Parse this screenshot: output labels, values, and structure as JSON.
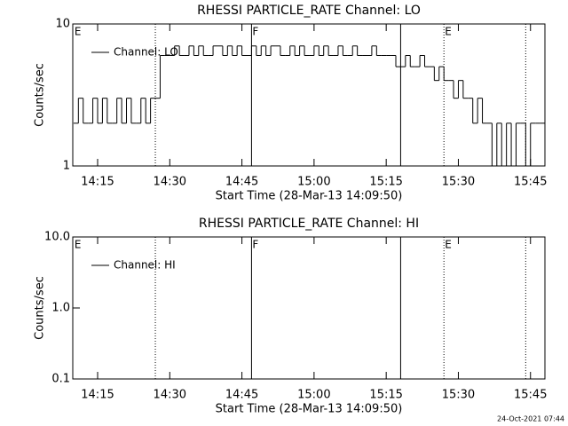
{
  "chart_data": [
    {
      "type": "line",
      "title": "RHESSI PARTICLE_RATE Channel: LO",
      "xlabel": "Start Time (28-Mar-13 14:09:50)",
      "ylabel": "Counts/sec",
      "ylog": true,
      "ylim": [
        1,
        10
      ],
      "yticks": [
        1,
        10
      ],
      "xlim": [
        "14:09:50",
        "15:48"
      ],
      "xticks": [
        "14:15",
        "14:30",
        "14:45",
        "15:00",
        "15:15",
        "15:30",
        "15:45"
      ],
      "vlines": [
        {
          "x": "14:27",
          "style": "dotted"
        },
        {
          "x": "14:47",
          "style": "solid"
        },
        {
          "x": "15:18",
          "style": "solid"
        },
        {
          "x": "15:27",
          "style": "dotted"
        },
        {
          "x": "15:44",
          "style": "dotted"
        }
      ],
      "flags": [
        {
          "label": "E",
          "x": "14:10"
        },
        {
          "label": "F",
          "x": "14:47"
        },
        {
          "label": "E",
          "x": "15:27"
        }
      ],
      "series": [
        {
          "name": "Channel: LO",
          "color": "#000000",
          "x": [
            "14:10",
            "14:11",
            "14:12",
            "14:13",
            "14:14",
            "14:15",
            "14:16",
            "14:17",
            "14:18",
            "14:19",
            "14:20",
            "14:21",
            "14:22",
            "14:23",
            "14:24",
            "14:25",
            "14:26",
            "14:27",
            "14:28",
            "14:29",
            "14:30",
            "14:31",
            "14:32",
            "14:33",
            "14:34",
            "14:35",
            "14:36",
            "14:37",
            "14:38",
            "14:39",
            "14:40",
            "14:41",
            "14:42",
            "14:43",
            "14:44",
            "14:45",
            "14:46",
            "14:47",
            "14:48",
            "14:49",
            "14:50",
            "14:51",
            "14:52",
            "14:53",
            "14:54",
            "14:55",
            "14:56",
            "14:57",
            "14:58",
            "14:59",
            "15:00",
            "15:01",
            "15:02",
            "15:03",
            "15:04",
            "15:05",
            "15:06",
            "15:07",
            "15:08",
            "15:09",
            "15:10",
            "15:11",
            "15:12",
            "15:13",
            "15:14",
            "15:15",
            "15:16",
            "15:17",
            "15:18",
            "15:19",
            "15:20",
            "15:21",
            "15:22",
            "15:23",
            "15:24",
            "15:25",
            "15:26",
            "15:27",
            "15:28",
            "15:29",
            "15:30",
            "15:31",
            "15:32",
            "15:33",
            "15:34",
            "15:35",
            "15:36",
            "15:37",
            "15:38",
            "15:39",
            "15:40",
            "15:41",
            "15:42",
            "15:43",
            "15:44",
            "15:45",
            "15:46",
            "15:47"
          ],
          "values": [
            2,
            3,
            2,
            2,
            3,
            2,
            3,
            2,
            2,
            3,
            2,
            3,
            2,
            2,
            3,
            2,
            3,
            3,
            6,
            6,
            6,
            7,
            6,
            6,
            7,
            6,
            7,
            6,
            6,
            7,
            7,
            6,
            7,
            6,
            7,
            6,
            6,
            7,
            6,
            7,
            6,
            7,
            7,
            6,
            6,
            7,
            6,
            7,
            6,
            6,
            7,
            6,
            7,
            6,
            6,
            7,
            6,
            6,
            7,
            6,
            6,
            6,
            7,
            6,
            6,
            6,
            6,
            5,
            5,
            6,
            5,
            5,
            6,
            5,
            5,
            4,
            5,
            4,
            4,
            3,
            4,
            3,
            3,
            2,
            3,
            2,
            2,
            1,
            2,
            1,
            2,
            1,
            2,
            2,
            1,
            2,
            2,
            2
          ]
        }
      ]
    },
    {
      "type": "line",
      "title": "RHESSI PARTICLE_RATE Channel: HI",
      "xlabel": "Start Time (28-Mar-13 14:09:50)",
      "ylabel": "Counts/sec",
      "ylog": true,
      "ylim": [
        0.1,
        10
      ],
      "yticks": [
        0.1,
        {
          "value": 1,
          "label": "1.0"
        },
        {
          "value": 10,
          "label": "10.0"
        }
      ],
      "xlim": [
        "14:09:50",
        "15:48"
      ],
      "xticks": [
        "14:15",
        "14:30",
        "14:45",
        "15:00",
        "15:15",
        "15:30",
        "15:45"
      ],
      "vlines": [
        {
          "x": "14:27",
          "style": "dotted"
        },
        {
          "x": "14:47",
          "style": "solid"
        },
        {
          "x": "15:18",
          "style": "solid"
        },
        {
          "x": "15:27",
          "style": "dotted"
        },
        {
          "x": "15:44",
          "style": "dotted"
        }
      ],
      "flags": [
        {
          "label": "E",
          "x": "14:10"
        },
        {
          "label": "F",
          "x": "14:47"
        },
        {
          "label": "E",
          "x": "15:27"
        }
      ],
      "series": [
        {
          "name": "Channel: HI",
          "color": "#000000",
          "x": [],
          "values": []
        }
      ]
    }
  ],
  "footer": "24-Oct-2021 07:44"
}
